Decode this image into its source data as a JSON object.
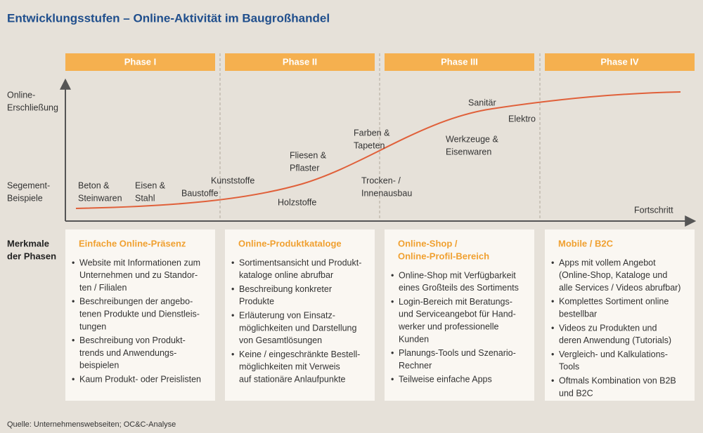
{
  "title": "Entwicklungsstufen – Online-Aktivität im Baugroßhandel",
  "y_axis_labels": [
    [
      "Online-",
      "Erschließung"
    ],
    [
      "Segement-",
      "Beispiele"
    ]
  ],
  "x_axis_label": "Fortschritt",
  "row_label": [
    "Merkmale",
    "der Phasen"
  ],
  "segments": [
    [
      "Beton &",
      "Steinwaren"
    ],
    [
      "Eisen &",
      "Stahl"
    ],
    [
      "Baustoffe"
    ],
    [
      "Kunststoffe"
    ],
    [
      "Holzstoffe"
    ],
    [
      "Fliesen &",
      "Pflaster"
    ],
    [
      "Farben &",
      "Tapeten"
    ],
    [
      "Trocken- /",
      "Innenausbau"
    ],
    [
      "Sanitär"
    ],
    [
      "Elektro"
    ],
    [
      "Werkzeuge &",
      "Eisenwaren"
    ]
  ],
  "phases": [
    {
      "label": "Phase I",
      "heading": [
        "Einfache Online-Präsenz"
      ],
      "bullets": [
        [
          "Website mit Informationen zum",
          "Unternehmen und zu Standor-",
          "ten / Filialen"
        ],
        [
          "Beschreibungen der angebo-",
          "tenen Produkte und Dienstleis-",
          "tungen"
        ],
        [
          "Beschreibung von Produkt-",
          "trends und Anwendungs-",
          "beispielen"
        ],
        [
          "Kaum Produkt- oder Preislisten"
        ]
      ]
    },
    {
      "label": "Phase II",
      "heading": [
        "Online-Produktkataloge"
      ],
      "bullets": [
        [
          "Sortimentsansicht und Produkt-",
          "kataloge online abrufbar"
        ],
        [
          "Beschreibung konkreter",
          "Produkte"
        ],
        [
          "Erläuterung von Einsatz-",
          "möglichkeiten und Darstellung",
          "von Gesamtlösungen"
        ],
        [
          "Keine / eingeschränkte Bestell-",
          "möglichkeiten mit Verweis",
          "auf stationäre Anlaufpunkte"
        ]
      ]
    },
    {
      "label": "Phase III",
      "heading": [
        "Online-Shop /",
        "Online-Profil-Bereich"
      ],
      "bullets": [
        [
          "Online-Shop mit Verfügbarkeit",
          "eines Großteils des Sortiments"
        ],
        [
          "Login-Bereich mit Beratungs-",
          "und Serviceangebot für Hand-",
          "werker und professionelle",
          "Kunden"
        ],
        [
          "Planungs-Tools und Szenario-",
          "Rechner"
        ],
        [
          "Teilweise einfache Apps"
        ]
      ]
    },
    {
      "label": "Phase IV",
      "heading": [
        "Mobile / B2C"
      ],
      "bullets": [
        [
          "Apps mit vollem Angebot",
          "(Online-Shop, Kataloge und",
          "alle Services / Videos abrufbar)"
        ],
        [
          "Komplettes Sortiment online",
          "bestellbar"
        ],
        [
          "Videos zu Produkten und",
          "deren Anwendung (Tutorials)"
        ],
        [
          "Vergleich- und Kalkulations-",
          "Tools"
        ],
        [
          "Oftmals Kombination von B2B",
          "und B2C"
        ]
      ]
    }
  ],
  "source": "Quelle: Unternehmenswebseiten; OC&C-Analyse"
}
